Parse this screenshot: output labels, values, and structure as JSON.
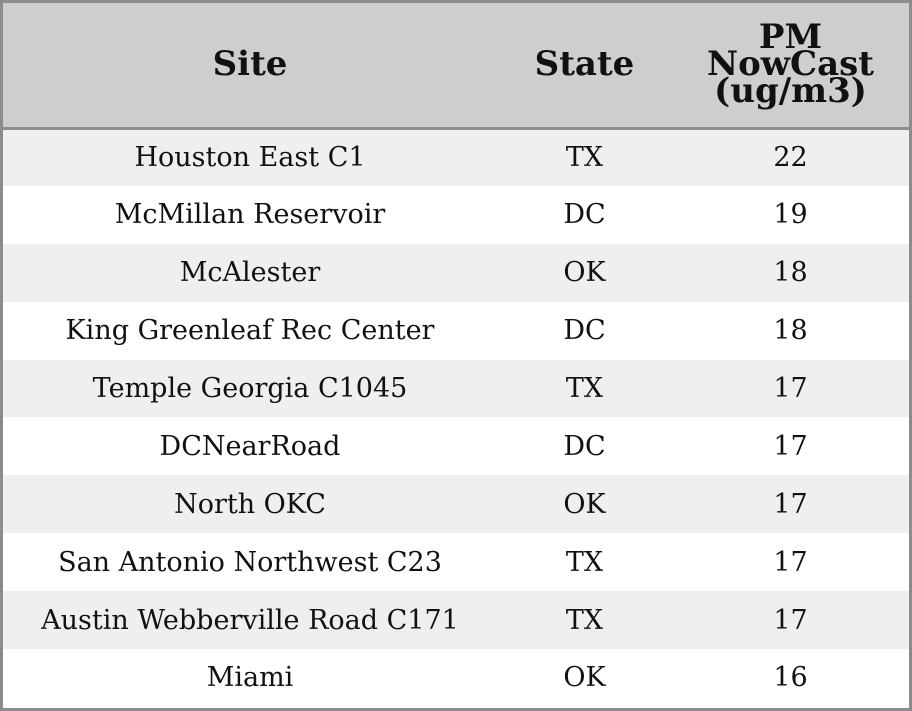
{
  "chart_data": {
    "type": "table",
    "columns": [
      "Site",
      "State",
      "PM NowCast (ug/m3)"
    ],
    "header_lines": {
      "site": [
        "Site"
      ],
      "state": [
        "State"
      ],
      "pm": [
        "PM",
        "NowCast",
        "(ug/m3)"
      ]
    },
    "rows": [
      {
        "site": "Houston East C1",
        "state": "TX",
        "pm": 22
      },
      {
        "site": "McMillan Reservoir",
        "state": "DC",
        "pm": 19
      },
      {
        "site": "McAlester",
        "state": "OK",
        "pm": 18
      },
      {
        "site": "King Greenleaf Rec Center",
        "state": "DC",
        "pm": 18
      },
      {
        "site": "Temple Georgia C1045",
        "state": "TX",
        "pm": 17
      },
      {
        "site": "DCNearRoad",
        "state": "DC",
        "pm": 17
      },
      {
        "site": "North OKC",
        "state": "OK",
        "pm": 17
      },
      {
        "site": "San Antonio Northwest C23",
        "state": "TX",
        "pm": 17
      },
      {
        "site": "Austin Webberville Road C171",
        "state": "TX",
        "pm": 17
      },
      {
        "site": "Miami",
        "state": "OK",
        "pm": 16
      }
    ],
    "colors": {
      "header_bg": "#cecece",
      "row_alt_bg": "#efefef",
      "row_bg": "#ffffff",
      "border": "#8c8c8c"
    }
  }
}
